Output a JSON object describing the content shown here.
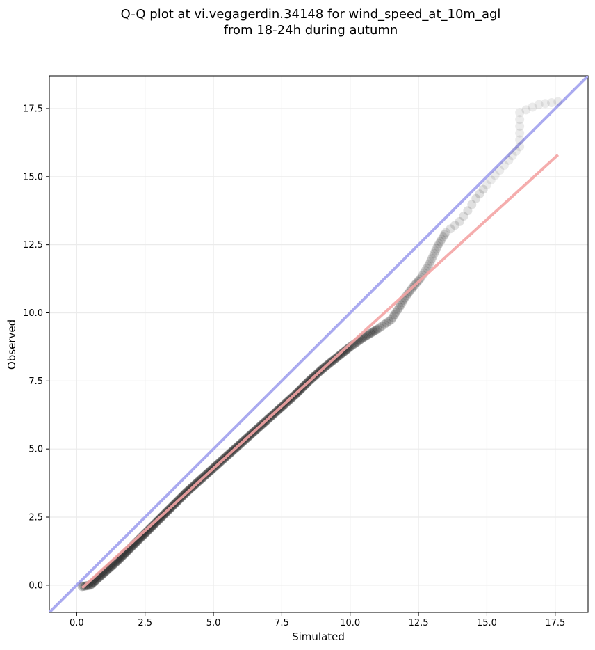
{
  "chart_data": {
    "type": "scatter",
    "title_lines": [
      "Q-Q plot at vi.vegagerdin.34148 for wind_speed_at_10m_agl",
      "from 18-24h during autumn"
    ],
    "xlabel": "Simulated",
    "ylabel": "Observed",
    "xlim": [
      -1.0,
      18.7
    ],
    "ylim": [
      -1.0,
      18.7
    ],
    "xticks": [
      "0.0",
      "2.5",
      "5.0",
      "7.5",
      "10.0",
      "12.5",
      "15.0",
      "17.5"
    ],
    "yticks": [
      "0.0",
      "2.5",
      "5.0",
      "7.5",
      "10.0",
      "12.5",
      "15.0",
      "17.5"
    ],
    "grid": true,
    "reference_line": {
      "color": "#aaaaf0",
      "slope": 1,
      "intercept": 0
    },
    "fit_line": {
      "color": "#f4a5a5",
      "x": [
        0.2,
        17.6
      ],
      "y": [
        -0.1,
        15.8
      ]
    },
    "point_color": "#000000",
    "quantiles": {
      "x": [
        0.2,
        0.5,
        1.0,
        1.5,
        2.0,
        2.5,
        3.0,
        3.5,
        4.0,
        4.5,
        5.0,
        5.5,
        6.0,
        6.5,
        7.0,
        7.5,
        8.0,
        8.5,
        9.0,
        9.5,
        10.0,
        10.5,
        11.0,
        11.5,
        11.8,
        12.0,
        12.3,
        12.6,
        12.9,
        13.2,
        13.5,
        14.0,
        14.3,
        14.6,
        15.0,
        15.3,
        15.8,
        16.2,
        16.2,
        16.9,
        17.6
      ],
      "y": [
        -0.05,
        0.0,
        0.45,
        0.9,
        1.4,
        1.9,
        2.4,
        2.9,
        3.4,
        3.85,
        4.3,
        4.75,
        5.2,
        5.65,
        6.1,
        6.55,
        7.0,
        7.5,
        7.95,
        8.35,
        8.75,
        9.1,
        9.4,
        9.75,
        10.2,
        10.55,
        10.95,
        11.3,
        11.8,
        12.45,
        12.95,
        13.35,
        13.75,
        14.2,
        14.7,
        15.05,
        15.6,
        16.1,
        17.35,
        17.65,
        17.75
      ]
    }
  }
}
